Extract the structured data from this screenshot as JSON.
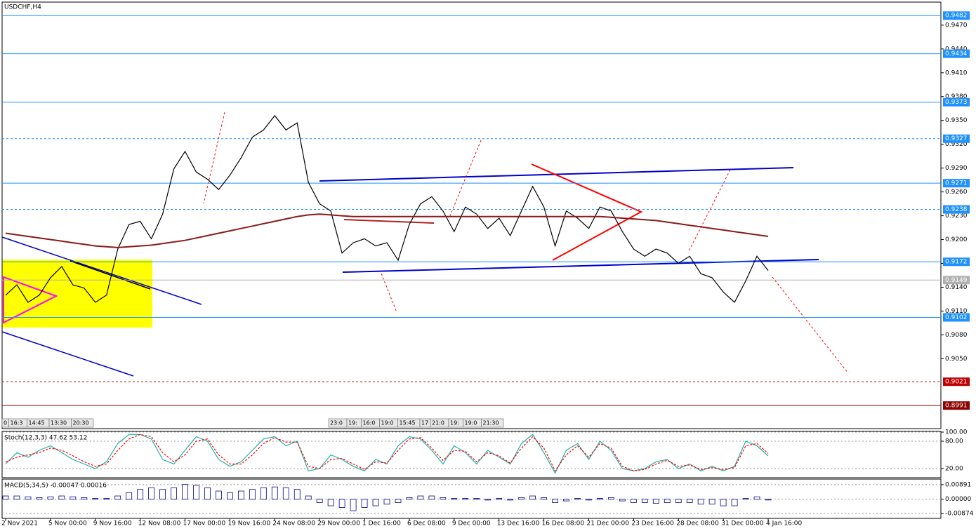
{
  "chart_data": [
    {
      "type": "line",
      "title": "USDCHF,H4",
      "categories": [
        "2 Nov 2021",
        null,
        null,
        null,
        "5 Nov 00:00",
        null,
        null,
        null,
        "9 Nov 16:00",
        null,
        null,
        null,
        "12 Nov 08:00",
        null,
        null,
        null,
        "17 Nov 00:00",
        null,
        null,
        null,
        "19 Nov 16:00",
        null,
        null,
        null,
        "24 Nov 08:00",
        null,
        null,
        null,
        "29 Nov 00:00",
        null,
        null,
        null,
        "1 Dec 16:00",
        null,
        null,
        null,
        "6 Dec 08:00",
        null,
        null,
        null,
        "9 Dec 00:00",
        null,
        null,
        null,
        "13 Dec 16:00",
        null,
        null,
        null,
        "16 Dec 08:00",
        null,
        null,
        null,
        "21 Dec 00:00",
        null,
        null,
        null,
        "23 Dec 16:00",
        null,
        null,
        null,
        "28 Dec 08:00",
        null,
        null,
        null,
        "31 Dec 00:00",
        null,
        null,
        null,
        "4 Jan 16:00"
      ],
      "series": [
        {
          "color": "#000000",
          "values": [
            0.913,
            0.9143,
            0.9121,
            0.913,
            0.9152,
            0.9166,
            0.9143,
            0.9139,
            0.9121,
            0.913,
            0.9188,
            0.9219,
            0.9223,
            0.9201,
            0.9232,
            0.9289,
            0.9311,
            0.9285,
            0.9276,
            0.9263,
            0.9281,
            0.9303,
            0.9329,
            0.9338,
            0.9356,
            0.9338,
            0.9347,
            0.9272,
            0.9245,
            0.9236,
            0.9183,
            0.9196,
            0.9201,
            0.9192,
            0.9196,
            0.9174,
            0.9219,
            0.9245,
            0.9254,
            0.9236,
            0.921,
            0.9241,
            0.9232,
            0.9214,
            0.9227,
            0.9205,
            0.9236,
            0.9267,
            0.9241,
            0.9192,
            0.9236,
            0.9227,
            0.9214,
            0.9241,
            0.9236,
            0.921,
            0.9188,
            0.9179,
            0.9188,
            0.9183,
            0.917,
            0.9179,
            0.9157,
            0.9152,
            0.9134,
            0.9121,
            0.9148,
            0.9179,
            0.9161
          ]
        },
        {
          "color": "#8b1a1a",
          "values": [
            0.9208,
            0.9206,
            0.9204,
            0.9202,
            0.92,
            0.9198,
            0.9196,
            0.9194,
            0.9192,
            0.9191,
            0.919,
            0.9191,
            0.9192,
            0.9193,
            0.9195,
            0.9197,
            0.9199,
            0.9202,
            0.9205,
            0.9208,
            0.9211,
            0.9214,
            0.9217,
            0.922,
            0.9223,
            0.9226,
            0.9229,
            0.9231,
            0.9232,
            0.9231,
            0.923,
            0.9229,
            0.9229,
            0.9229,
            0.9229,
            0.9229,
            0.9229,
            0.9229,
            0.9229,
            0.9229,
            0.9229,
            0.9229,
            0.9229,
            0.9229,
            0.9229,
            0.9229,
            0.9229,
            0.9229,
            0.9229,
            0.9229,
            0.9229,
            0.9229,
            0.9229,
            0.9229,
            0.9228,
            0.9227,
            0.9226,
            0.9225,
            0.9224,
            0.9222,
            0.922,
            0.9218,
            0.9216,
            0.9214,
            0.9212,
            0.921,
            0.9208,
            0.9206,
            0.9204
          ]
        }
      ],
      "ylim": [
        0.8962,
        0.9499
      ],
      "yticks": [
        {
          "value": 0.947,
          "label": "0.9470"
        },
        {
          "value": 0.944,
          "label": "0.9440"
        },
        {
          "value": 0.941,
          "label": "0.9410"
        },
        {
          "value": 0.938,
          "label": "0.9380"
        },
        {
          "value": 0.935,
          "label": "0.9350"
        },
        {
          "value": 0.932,
          "label": "0.9320"
        },
        {
          "value": 0.929,
          "label": "0.9290"
        },
        {
          "value": 0.926,
          "label": "0.9260"
        },
        {
          "value": 0.923,
          "label": "0.9230"
        },
        {
          "value": 0.92,
          "label": "0.9200"
        },
        {
          "value": 0.917,
          "label": "0.9170"
        },
        {
          "value": 0.914,
          "label": "0.9140"
        },
        {
          "value": 0.911,
          "label": "0.9110"
        },
        {
          "value": 0.908,
          "label": "0.9080"
        },
        {
          "value": 0.905,
          "label": "0.9050"
        }
      ],
      "levels": [
        {
          "value": 0.9482,
          "color": "#1e90ff",
          "dashed": false
        },
        {
          "value": 0.9434,
          "color": "#1e90ff",
          "dashed": false
        },
        {
          "value": 0.9373,
          "color": "#1e90ff",
          "dashed": false
        },
        {
          "value": 0.9327,
          "color": "#1e90ff",
          "dashed": true
        },
        {
          "value": 0.9271,
          "color": "#1e90ff",
          "dashed": false
        },
        {
          "value": 0.9238,
          "color": "#1e90ff",
          "dashed": true
        },
        {
          "value": 0.9172,
          "color": "#1e90ff",
          "dashed": false
        },
        {
          "value": 0.9149,
          "color": "#b0b0b0",
          "dashed": false
        },
        {
          "value": 0.9102,
          "color": "#1e90ff",
          "dashed": false
        },
        {
          "value": 0.9021,
          "color": "#c00000",
          "dashed": true
        },
        {
          "value": 0.8991,
          "color": "#8b0000",
          "dashed": false
        }
      ],
      "time_tags": [
        [
          "0",
          "16:3",
          "14:45",
          "13:30",
          "20:30"
        ],
        [
          "23:0",
          "19:",
          "16:0",
          "19:0",
          "15:45",
          "17",
          "21:0",
          "19:",
          "19:0",
          "21:30"
        ]
      ]
    },
    {
      "type": "line",
      "title": "Stoch(12,3,3) 47.62 53.12",
      "series": [
        {
          "color": "#20b2aa",
          "values": [
            30,
            55,
            45,
            60,
            70,
            55,
            40,
            30,
            20,
            35,
            75,
            95,
            95,
            85,
            40,
            30,
            60,
            90,
            80,
            40,
            25,
            35,
            60,
            85,
            90,
            70,
            80,
            15,
            20,
            50,
            40,
            25,
            15,
            40,
            30,
            70,
            90,
            85,
            60,
            30,
            70,
            55,
            30,
            60,
            45,
            30,
            75,
            95,
            55,
            10,
            60,
            75,
            40,
            80,
            60,
            20,
            15,
            20,
            35,
            40,
            20,
            30,
            15,
            25,
            15,
            25,
            80,
            70,
            47.62
          ]
        },
        {
          "color": "#ff0000",
          "dashed": true,
          "values": [
            35,
            45,
            50,
            55,
            65,
            60,
            48,
            35,
            25,
            30,
            60,
            85,
            95,
            90,
            55,
            35,
            50,
            80,
            85,
            50,
            30,
            30,
            50,
            75,
            88,
            78,
            78,
            25,
            20,
            40,
            42,
            30,
            18,
            35,
            32,
            60,
            85,
            88,
            65,
            38,
            60,
            58,
            35,
            55,
            48,
            32,
            65,
            90,
            65,
            15,
            50,
            70,
            45,
            75,
            65,
            25,
            15,
            18,
            30,
            38,
            25,
            28,
            18,
            22,
            18,
            22,
            70,
            75,
            53.12
          ]
        }
      ],
      "ylim": [
        0,
        100
      ],
      "yticks": [
        {
          "value": 100,
          "label": "100.00"
        },
        {
          "value": 80,
          "label": "80.00"
        },
        {
          "value": 20,
          "label": "20.00"
        }
      ]
    },
    {
      "type": "bar",
      "title": "MACD(5,34,5) -0.00047 0.00016",
      "color": "#00008b",
      "values": [
        0.002,
        0.002,
        0.0015,
        0.001,
        0.0015,
        0.002,
        0.0015,
        0.001,
        0.0005,
        0.0005,
        0.002,
        0.004,
        0.006,
        0.007,
        0.006,
        0.007,
        0.009,
        0.0085,
        0.007,
        0.005,
        0.004,
        0.005,
        0.006,
        0.007,
        0.0075,
        0.007,
        0.006,
        0.002,
        -0.002,
        -0.004,
        -0.005,
        -0.007,
        -0.005,
        -0.004,
        -0.003,
        -0.002,
        0.001,
        0.002,
        0.002,
        0.001,
        0.0005,
        0.0005,
        0.0005,
        -0.0005,
        0.0005,
        -0.0005,
        0.001,
        0.002,
        0.001,
        -0.002,
        -0.001,
        0.0005,
        -0.0005,
        0.0005,
        0.001,
        -0.001,
        -0.002,
        -0.002,
        -0.0025,
        -0.002,
        -0.002,
        -0.002,
        -0.003,
        -0.003,
        -0.004,
        -0.004,
        0.0005,
        0.0015,
        -0.00047
      ],
      "ylim": [
        -0.0108,
        0.011
      ],
      "yticks": [
        0.00891,
        {
          "value": 0,
          "label": "0.00000"
        },
        -0.00874
      ]
    }
  ]
}
